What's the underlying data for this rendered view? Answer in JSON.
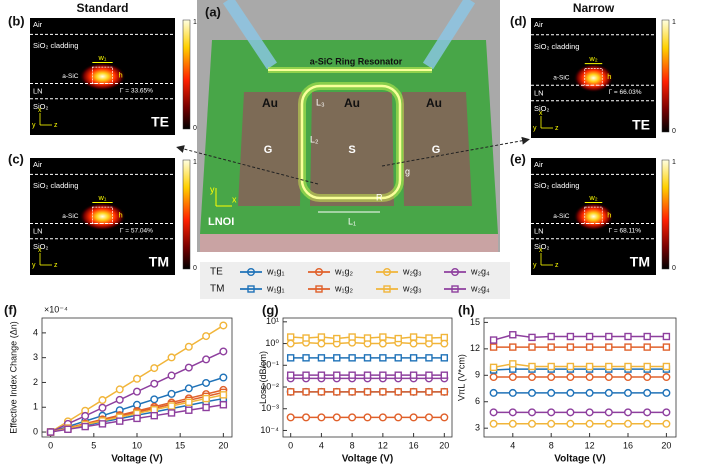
{
  "mode_panels": [
    {
      "label": "(b)",
      "header": "Standard",
      "layers": [
        "Air",
        "SiO₂ cladding",
        "a-SiC",
        "LN",
        "SiO₂"
      ],
      "width": "w₁",
      "height": "h",
      "gamma": "Γ = 33.65%",
      "mode": "TE"
    },
    {
      "label": "(c)",
      "layers": [
        "Air",
        "SiO₂ cladding",
        "a-SiC",
        "LN",
        "SiO₂"
      ],
      "width": "w₁",
      "height": "h",
      "gamma": "Γ = 57.04%",
      "mode": "TM"
    },
    {
      "label": "(d)",
      "header": "Narrow",
      "layers": [
        "Air",
        "SiO₂ cladding",
        "a-SiC",
        "LN",
        "SiO₂"
      ],
      "width": "w₂",
      "height": "h",
      "gamma": "Γ = 66.03%",
      "mode": "TE"
    },
    {
      "label": "(e)",
      "layers": [
        "Air",
        "SiO₂ cladding",
        "a-SiC",
        "LN",
        "SiO₂"
      ],
      "width": "w₂",
      "height": "h",
      "gamma": "Γ = 68.11%",
      "mode": "TM"
    }
  ],
  "colorbar_ticks": [
    1,
    0
  ],
  "axis_icon": [
    "x",
    "y",
    "z"
  ],
  "device": {
    "label": "(a)",
    "title": "a-SiC Ring Resonator",
    "electrodes": [
      "Au",
      "Au",
      "Au"
    ],
    "pads": [
      "G",
      "S",
      "G"
    ],
    "dims": [
      "L₃",
      "L₂",
      "L₁",
      "R",
      "g"
    ],
    "substrate": "LNOI",
    "axes": [
      "y",
      "x"
    ]
  },
  "legend_rows": [
    "TE",
    "TM"
  ],
  "chart_data": [
    {
      "type": "line",
      "label": "(f)",
      "x_label": "Voltage (V)",
      "y_label": "Effective Index Change (Δn)",
      "multiplier": "×10⁻⁴",
      "x": [
        0,
        2,
        4,
        6,
        8,
        10,
        12,
        14,
        16,
        18,
        20
      ],
      "xlim": [
        -1,
        21
      ],
      "xticks": [
        0,
        5,
        10,
        15,
        20
      ],
      "ylim": [
        -0.2,
        4.6
      ],
      "yticks": [
        0,
        1,
        2,
        3,
        4
      ],
      "series": [
        {
          "name": "w₁g₁",
          "color": "#1f72b8",
          "marker": "circle",
          "values": [
            0,
            0.22,
            0.44,
            0.66,
            0.88,
            1.1,
            1.32,
            1.54,
            1.76,
            1.98,
            2.2
          ]
        },
        {
          "name": "w₁g₂",
          "color": "#e0602a",
          "marker": "circle",
          "values": [
            0,
            0.17,
            0.34,
            0.51,
            0.68,
            0.85,
            1.02,
            1.19,
            1.36,
            1.53,
            1.7
          ]
        },
        {
          "name": "w₂g₃",
          "color": "#f1b53a",
          "marker": "circle",
          "values": [
            0,
            0.43,
            0.86,
            1.29,
            1.72,
            2.15,
            2.58,
            3.01,
            3.44,
            3.87,
            4.3
          ]
        },
        {
          "name": "w₂g₄",
          "color": "#8e3f9e",
          "marker": "circle",
          "values": [
            0,
            0.33,
            0.65,
            0.98,
            1.3,
            1.63,
            1.95,
            2.28,
            2.6,
            2.93,
            3.25
          ]
        },
        {
          "name": "w₁g₁",
          "color": "#1f72b8",
          "marker": "square",
          "values": [
            0,
            0.14,
            0.27,
            0.41,
            0.54,
            0.68,
            0.81,
            0.95,
            1.08,
            1.22,
            1.35
          ]
        },
        {
          "name": "w₁g₂",
          "color": "#e0602a",
          "marker": "square",
          "values": [
            0,
            0.16,
            0.32,
            0.48,
            0.64,
            0.8,
            0.96,
            1.12,
            1.28,
            1.44,
            1.6
          ]
        },
        {
          "name": "w₂g₃",
          "color": "#f1b53a",
          "marker": "square",
          "values": [
            0,
            0.15,
            0.3,
            0.45,
            0.6,
            0.75,
            0.9,
            1.05,
            1.2,
            1.35,
            1.5
          ]
        },
        {
          "name": "w₂g₄",
          "color": "#8e3f9e",
          "marker": "square",
          "values": [
            0,
            0.11,
            0.22,
            0.33,
            0.44,
            0.55,
            0.66,
            0.77,
            0.88,
            0.99,
            1.1
          ]
        }
      ]
    },
    {
      "type": "line",
      "label": "(g)",
      "x_label": "Voltage (V)",
      "y_label": "Loss (dB/cm)",
      "log_y": true,
      "x": [
        0,
        2,
        4,
        6,
        8,
        10,
        12,
        14,
        16,
        18,
        20
      ],
      "xlim": [
        -1,
        21
      ],
      "xticks": [
        0,
        4,
        8,
        12,
        16,
        20
      ],
      "ylim": [
        5e-05,
        15
      ],
      "yticks": [
        {
          "value": 0.0001,
          "label": "10⁻⁴"
        },
        {
          "value": 0.001,
          "label": "10⁻³"
        },
        {
          "value": 0.01,
          "label": "10⁻²"
        },
        {
          "value": 0.1,
          "label": "10⁻¹"
        },
        {
          "value": 1,
          "label": "10⁰"
        },
        {
          "value": 10,
          "label": "10¹"
        }
      ],
      "series": [
        {
          "color": "#1f72b8",
          "marker": "circle",
          "values": [
            0.006,
            0.006,
            0.006,
            0.006,
            0.006,
            0.006,
            0.006,
            0.006,
            0.006,
            0.006,
            0.006
          ]
        },
        {
          "color": "#e0602a",
          "marker": "circle",
          "values": [
            0.0004,
            0.0004,
            0.0004,
            0.0004,
            0.0004,
            0.0004,
            0.0004,
            0.0004,
            0.0004,
            0.0004,
            0.0004
          ]
        },
        {
          "color": "#f1b53a",
          "marker": "circle",
          "values": [
            1.0,
            1.1,
            1.0,
            1.0,
            1.1,
            1.0,
            1.0,
            1.1,
            1.0,
            1.0,
            1.0
          ]
        },
        {
          "color": "#8e3f9e",
          "marker": "circle",
          "values": [
            0.025,
            0.025,
            0.025,
            0.025,
            0.025,
            0.025,
            0.025,
            0.025,
            0.025,
            0.025,
            0.025
          ]
        },
        {
          "color": "#1f72b8",
          "marker": "square",
          "values": [
            0.22,
            0.22,
            0.22,
            0.22,
            0.22,
            0.22,
            0.22,
            0.22,
            0.22,
            0.22,
            0.22
          ]
        },
        {
          "color": "#e0602a",
          "marker": "square",
          "values": [
            0.006,
            0.006,
            0.006,
            0.006,
            0.006,
            0.006,
            0.006,
            0.006,
            0.006,
            0.006,
            0.006
          ]
        },
        {
          "color": "#f1b53a",
          "marker": "square",
          "values": [
            2.0,
            1.8,
            2.0,
            1.7,
            2.0,
            1.8,
            2.0,
            1.7,
            2.0,
            1.8,
            1.9
          ]
        },
        {
          "color": "#8e3f9e",
          "marker": "square",
          "values": [
            0.035,
            0.035,
            0.035,
            0.035,
            0.035,
            0.035,
            0.035,
            0.035,
            0.035,
            0.035,
            0.035
          ]
        }
      ]
    },
    {
      "type": "line",
      "label": "(h)",
      "x_label": "Voltage (V)",
      "y_label": "VπL (V*cm)",
      "x": [
        2,
        4,
        6,
        8,
        10,
        12,
        14,
        16,
        18,
        20
      ],
      "xlim": [
        1,
        21
      ],
      "xticks": [
        4,
        8,
        12,
        16,
        20
      ],
      "ylim": [
        2,
        15.5
      ],
      "yticks": [
        3,
        6,
        9,
        12,
        15
      ],
      "series": [
        {
          "color": "#1f72b8",
          "marker": "circle",
          "values": [
            7.0,
            7.0,
            7.0,
            7.0,
            7.0,
            7.0,
            7.0,
            7.0,
            7.0,
            7.0
          ]
        },
        {
          "color": "#e0602a",
          "marker": "circle",
          "values": [
            8.8,
            8.8,
            8.8,
            8.8,
            8.8,
            8.8,
            8.8,
            8.8,
            8.8,
            8.8
          ]
        },
        {
          "color": "#f1b53a",
          "marker": "circle",
          "values": [
            3.5,
            3.5,
            3.5,
            3.5,
            3.5,
            3.5,
            3.5,
            3.5,
            3.5,
            3.5
          ]
        },
        {
          "color": "#8e3f9e",
          "marker": "circle",
          "values": [
            4.8,
            4.8,
            4.8,
            4.8,
            4.8,
            4.8,
            4.8,
            4.8,
            4.8,
            4.8
          ]
        },
        {
          "color": "#1f72b8",
          "marker": "square",
          "values": [
            9.6,
            9.7,
            9.7,
            9.7,
            9.7,
            9.7,
            9.7,
            9.7,
            9.7,
            9.7
          ]
        },
        {
          "color": "#e0602a",
          "marker": "square",
          "values": [
            12.2,
            12.2,
            12.2,
            12.2,
            12.2,
            12.2,
            12.2,
            12.2,
            12.2,
            12.2
          ]
        },
        {
          "color": "#f1b53a",
          "marker": "square",
          "values": [
            9.9,
            10.3,
            10.0,
            10.0,
            10.0,
            10.0,
            10.0,
            10.0,
            10.0,
            10.0
          ]
        },
        {
          "color": "#8e3f9e",
          "marker": "square",
          "values": [
            13.0,
            13.6,
            13.3,
            13.4,
            13.4,
            13.4,
            13.4,
            13.4,
            13.4,
            13.4
          ]
        }
      ]
    }
  ]
}
